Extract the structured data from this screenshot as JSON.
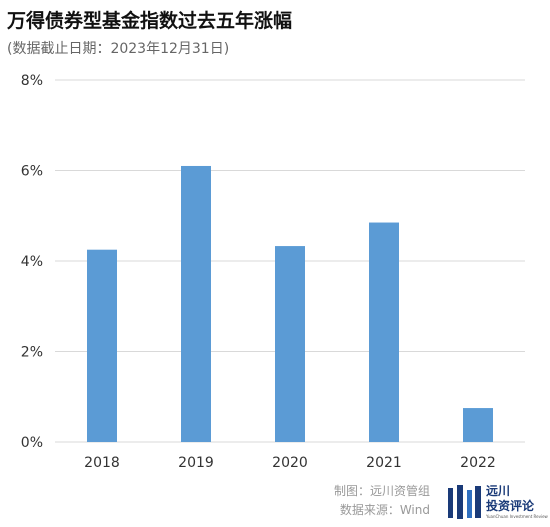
{
  "header": {
    "title": "万得债券型基金指数过去五年涨幅",
    "subtitle": "(数据截止日期：2023年12月31日)"
  },
  "footer": {
    "maker": "制图：远川资管组",
    "source": "数据来源：Wind"
  },
  "logo": {
    "name_line1": "远川",
    "name_line2": "投资评论",
    "tagline": "YuanChuan Investment Review"
  },
  "colors": {
    "bar": "#5b9bd5",
    "grid": "#d9d9d9"
  },
  "chart_data": {
    "type": "bar",
    "categories": [
      "2018",
      "2019",
      "2020",
      "2021",
      "2022"
    ],
    "values": [
      4.25,
      6.1,
      4.33,
      4.85,
      0.75
    ],
    "ylim": [
      0,
      8
    ],
    "yticks": [
      0,
      2,
      4,
      6,
      8
    ],
    "ytick_labels": [
      "0%",
      "2%",
      "4%",
      "6%",
      "8%"
    ],
    "grid": true
  }
}
